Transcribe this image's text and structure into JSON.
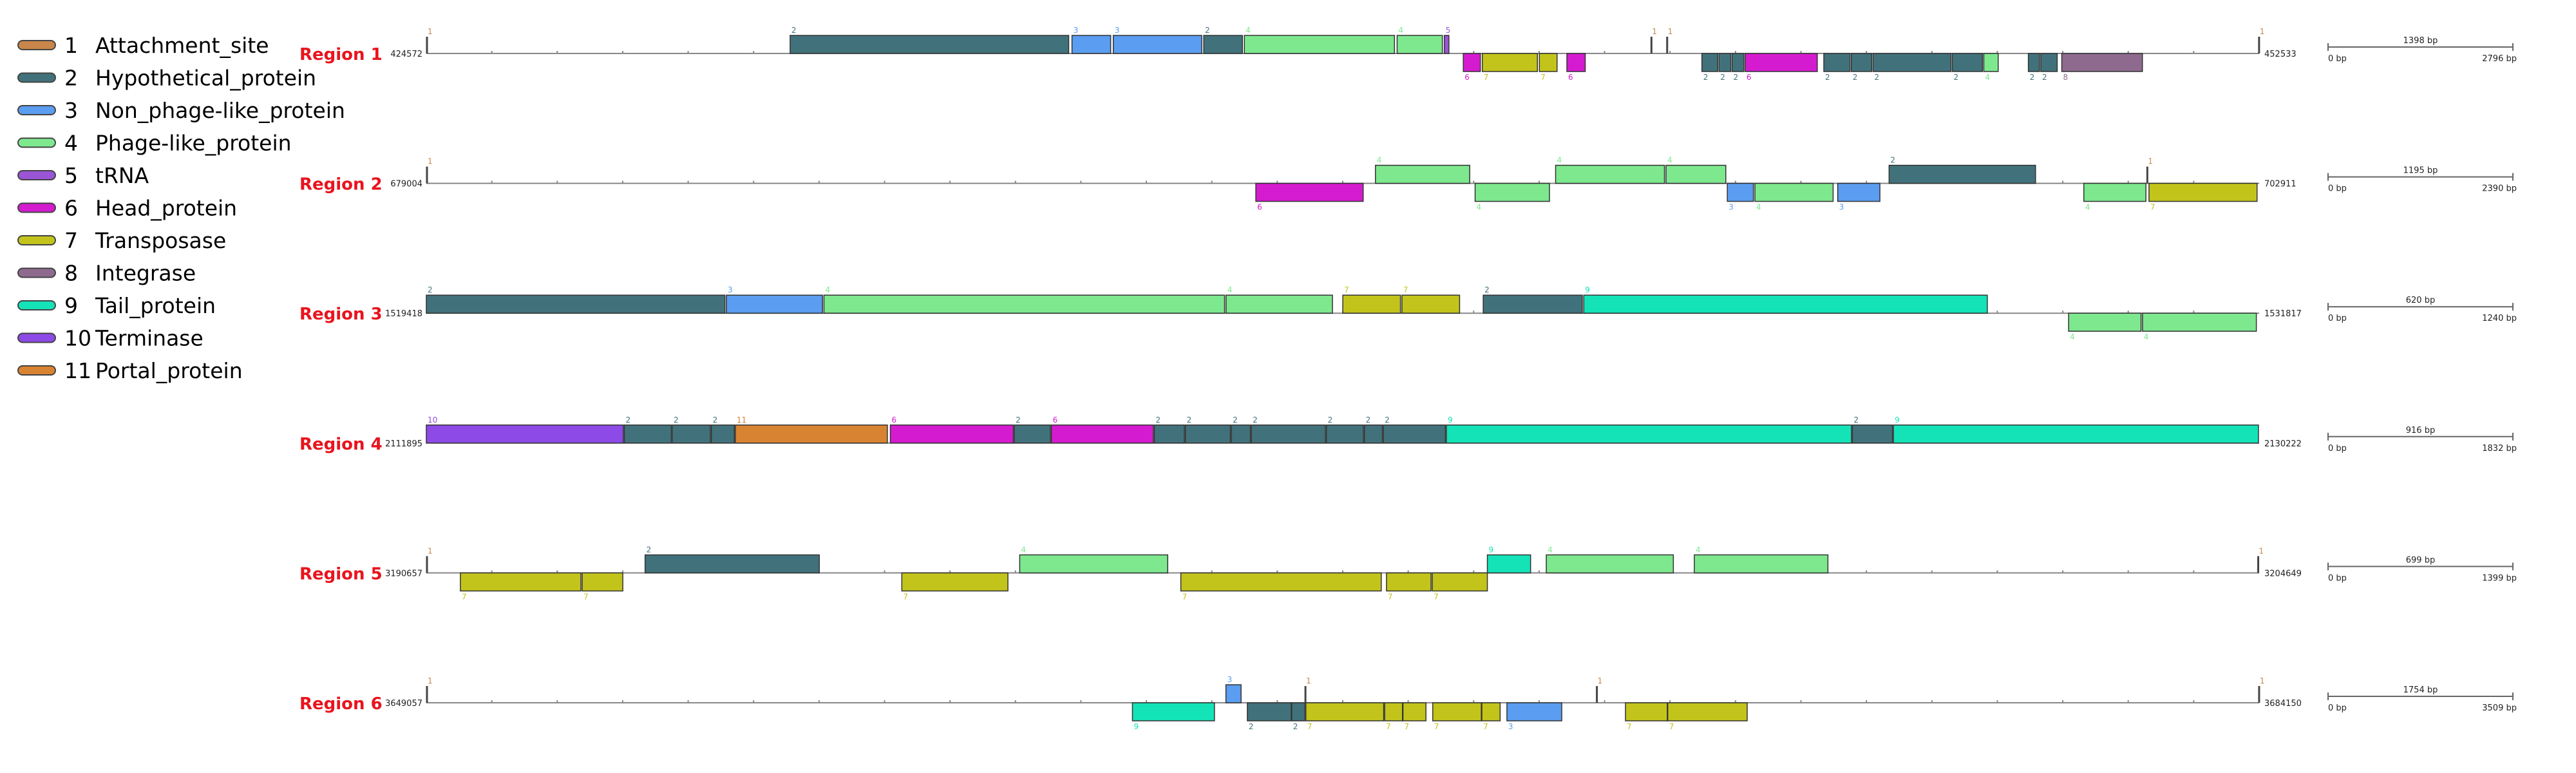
{
  "legend": [
    {
      "num": "1",
      "name": "Attachment_site",
      "color": "#c8864a"
    },
    {
      "num": "2",
      "name": "Hypothetical_protein",
      "color": "#41727b"
    },
    {
      "num": "3",
      "name": "Non_phage-like_protein",
      "color": "#5b9df0"
    },
    {
      "num": "4",
      "name": "Phage-like_protein",
      "color": "#7ee88f"
    },
    {
      "num": "5",
      "name": "tRNA",
      "color": "#9a55d6"
    },
    {
      "num": "6",
      "name": "Head_protein",
      "color": "#d51bcf"
    },
    {
      "num": "7",
      "name": "Transposase",
      "color": "#c3c41b"
    },
    {
      "num": "8",
      "name": "Integrase",
      "color": "#8e6a8f"
    },
    {
      "num": "9",
      "name": "Tail_protein",
      "color": "#14e3b8"
    },
    {
      "num": "10",
      "name": "Terminase",
      "color": "#8e4ae6"
    },
    {
      "num": "11",
      "name": "Portal_protein",
      "color": "#d88332"
    }
  ],
  "regions": [
    {
      "label": "Region 1",
      "start": "424572",
      "end": "452533",
      "scale_label": "1398 bp",
      "scale_left": "0 bp",
      "scale_right": "2796 bp",
      "bp_len": 27961,
      "genes": [
        {
          "s": 0,
          "e": 10,
          "strand": "att",
          "type": 1
        },
        {
          "s": 5550,
          "e": 9800,
          "strand": "+",
          "type": 2
        },
        {
          "s": 9850,
          "e": 10440,
          "strand": "+",
          "type": 3
        },
        {
          "s": 10480,
          "e": 11830,
          "strand": "+",
          "type": 3
        },
        {
          "s": 11860,
          "e": 12450,
          "strand": "+",
          "type": 2
        },
        {
          "s": 12480,
          "e": 14770,
          "strand": "+",
          "type": 4
        },
        {
          "s": 14810,
          "e": 15500,
          "strand": "+",
          "type": 4
        },
        {
          "s": 15530,
          "e": 15600,
          "strand": "+",
          "type": 5
        },
        {
          "s": 15820,
          "e": 16080,
          "strand": "-",
          "type": 6
        },
        {
          "s": 16110,
          "e": 16950,
          "strand": "-",
          "type": 7
        },
        {
          "s": 16980,
          "e": 17250,
          "strand": "-",
          "type": 7
        },
        {
          "s": 17400,
          "e": 17680,
          "strand": "-",
          "type": 6
        },
        {
          "s": 18680,
          "e": 18690,
          "strand": "att",
          "type": 1
        },
        {
          "s": 18920,
          "e": 18930,
          "strand": "att",
          "type": 1
        },
        {
          "s": 19460,
          "e": 19700,
          "strand": "-",
          "type": 2
        },
        {
          "s": 19720,
          "e": 19900,
          "strand": "-",
          "type": 2
        },
        {
          "s": 19920,
          "e": 20100,
          "strand": "-",
          "type": 2
        },
        {
          "s": 20120,
          "e": 21220,
          "strand": "-",
          "type": 6
        },
        {
          "s": 21320,
          "e": 21720,
          "strand": "-",
          "type": 2
        },
        {
          "s": 21740,
          "e": 22050,
          "strand": "-",
          "type": 2
        },
        {
          "s": 22070,
          "e": 23260,
          "strand": "-",
          "type": 2
        },
        {
          "s": 23280,
          "e": 23740,
          "strand": "-",
          "type": 2
        },
        {
          "s": 23760,
          "e": 23980,
          "strand": "-",
          "type": 4
        },
        {
          "s": 24440,
          "e": 24610,
          "strand": "-",
          "type": 2
        },
        {
          "s": 24630,
          "e": 24880,
          "strand": "-",
          "type": 2
        },
        {
          "s": 24950,
          "e": 26180,
          "strand": "-",
          "type": 8
        },
        {
          "s": 27950,
          "e": 27961,
          "strand": "att",
          "type": 1
        }
      ]
    },
    {
      "label": "Region 2",
      "start": "679004",
      "end": "702911",
      "scale_label": "1195 bp",
      "scale_left": "0 bp",
      "scale_right": "2390 bp",
      "bp_len": 23907,
      "genes": [
        {
          "s": 0,
          "e": 10,
          "strand": "att",
          "type": 1
        },
        {
          "s": 10820,
          "e": 12220,
          "strand": "-",
          "type": 6
        },
        {
          "s": 12380,
          "e": 13610,
          "strand": "+",
          "type": 4
        },
        {
          "s": 13680,
          "e": 14650,
          "strand": "-",
          "type": 4
        },
        {
          "s": 14730,
          "e": 16150,
          "strand": "+",
          "type": 4
        },
        {
          "s": 16170,
          "e": 16950,
          "strand": "+",
          "type": 4
        },
        {
          "s": 16970,
          "e": 17310,
          "strand": "-",
          "type": 3
        },
        {
          "s": 17330,
          "e": 18350,
          "strand": "-",
          "type": 4
        },
        {
          "s": 18410,
          "e": 18960,
          "strand": "-",
          "type": 3
        },
        {
          "s": 19080,
          "e": 20990,
          "strand": "+",
          "type": 2
        },
        {
          "s": 21620,
          "e": 22430,
          "strand": "-",
          "type": 4
        },
        {
          "s": 22470,
          "e": 23880,
          "strand": "-",
          "type": 7
        },
        {
          "s": 22440,
          "e": 22450,
          "strand": "att",
          "type": 1
        }
      ]
    },
    {
      "label": "Region 3",
      "start": "1519418",
      "end": "1531817",
      "scale_label": "620 bp",
      "scale_left": "0 bp",
      "scale_right": "1240 bp",
      "bp_len": 12399,
      "genes": [
        {
          "s": 0,
          "e": 2020,
          "strand": "+",
          "type": 2
        },
        {
          "s": 2030,
          "e": 2680,
          "strand": "+",
          "type": 3
        },
        {
          "s": 2690,
          "e": 5400,
          "strand": "+",
          "type": 4
        },
        {
          "s": 5410,
          "e": 6130,
          "strand": "+",
          "type": 4
        },
        {
          "s": 6200,
          "e": 6590,
          "strand": "+",
          "type": 7
        },
        {
          "s": 6600,
          "e": 6990,
          "strand": "+",
          "type": 7
        },
        {
          "s": 7150,
          "e": 7820,
          "strand": "+",
          "type": 2
        },
        {
          "s": 7830,
          "e": 10560,
          "strand": "+",
          "type": 9
        },
        {
          "s": 11110,
          "e": 11600,
          "strand": "-",
          "type": 4
        },
        {
          "s": 11610,
          "e": 12380,
          "strand": "-",
          "type": 4
        }
      ]
    },
    {
      "label": "Region 4",
      "start": "2111895",
      "end": "2130222",
      "scale_label": "916 bp",
      "scale_left": "0 bp",
      "scale_right": "1832 bp",
      "bp_len": 18327,
      "genes": [
        {
          "s": 0,
          "e": 1970,
          "strand": "+",
          "type": 10
        },
        {
          "s": 1980,
          "e": 2450,
          "strand": "+",
          "type": 2
        },
        {
          "s": 2460,
          "e": 2840,
          "strand": "+",
          "type": 2
        },
        {
          "s": 2850,
          "e": 3080,
          "strand": "+",
          "type": 2
        },
        {
          "s": 3090,
          "e": 4610,
          "strand": "+",
          "type": 11
        },
        {
          "s": 4640,
          "e": 5870,
          "strand": "+",
          "type": 6
        },
        {
          "s": 5880,
          "e": 6240,
          "strand": "+",
          "type": 2
        },
        {
          "s": 6250,
          "e": 7270,
          "strand": "+",
          "type": 6
        },
        {
          "s": 7280,
          "e": 7580,
          "strand": "+",
          "type": 2
        },
        {
          "s": 7590,
          "e": 8040,
          "strand": "+",
          "type": 2
        },
        {
          "s": 8050,
          "e": 8240,
          "strand": "+",
          "type": 2
        },
        {
          "s": 8250,
          "e": 8990,
          "strand": "+",
          "type": 2
        },
        {
          "s": 9000,
          "e": 9370,
          "strand": "+",
          "type": 2
        },
        {
          "s": 9380,
          "e": 9560,
          "strand": "+",
          "type": 2
        },
        {
          "s": 9570,
          "e": 10190,
          "strand": "+",
          "type": 2
        },
        {
          "s": 10200,
          "e": 14250,
          "strand": "+",
          "type": 9
        },
        {
          "s": 14260,
          "e": 14660,
          "strand": "+",
          "type": 2
        },
        {
          "s": 14670,
          "e": 18320,
          "strand": "+",
          "type": 9
        }
      ]
    },
    {
      "label": "Region 5",
      "start": "3190657",
      "end": "3204649",
      "scale_label": "699 bp",
      "scale_left": "0 bp",
      "scale_right": "1399 bp",
      "bp_len": 13992,
      "genes": [
        {
          "s": 0,
          "e": 10,
          "strand": "att",
          "type": 1
        },
        {
          "s": 260,
          "e": 1180,
          "strand": "-",
          "type": 7
        },
        {
          "s": 1190,
          "e": 1500,
          "strand": "-",
          "type": 7
        },
        {
          "s": 1670,
          "e": 3000,
          "strand": "+",
          "type": 2
        },
        {
          "s": 3630,
          "e": 4440,
          "strand": "-",
          "type": 7
        },
        {
          "s": 4530,
          "e": 5660,
          "strand": "+",
          "type": 4
        },
        {
          "s": 5760,
          "e": 7290,
          "strand": "-",
          "type": 7
        },
        {
          "s": 7330,
          "e": 7670,
          "strand": "-",
          "type": 7
        },
        {
          "s": 7680,
          "e": 8100,
          "strand": "-",
          "type": 7
        },
        {
          "s": 8100,
          "e": 8430,
          "strand": "+",
          "type": 9
        },
        {
          "s": 8550,
          "e": 9520,
          "strand": "+",
          "type": 4
        },
        {
          "s": 9680,
          "e": 10700,
          "strand": "+",
          "type": 4
        },
        {
          "s": 13980,
          "e": 13992,
          "strand": "att",
          "type": 1
        }
      ]
    },
    {
      "label": "Region 6",
      "start": "3649057",
      "end": "3684150",
      "scale_label": "1754 bp",
      "scale_left": "0 bp",
      "scale_right": "3509 bp",
      "bp_len": 35093,
      "genes": [
        {
          "s": 0,
          "e": 10,
          "strand": "att",
          "type": 1
        },
        {
          "s": 13520,
          "e": 15090,
          "strand": "-",
          "type": 9
        },
        {
          "s": 15310,
          "e": 15600,
          "strand": "+",
          "type": 3
        },
        {
          "s": 15720,
          "e": 16560,
          "strand": "-",
          "type": 2
        },
        {
          "s": 16570,
          "e": 16820,
          "strand": "-",
          "type": 2
        },
        {
          "s": 16820,
          "e": 16830,
          "strand": "att",
          "type": 1
        },
        {
          "s": 16840,
          "e": 18330,
          "strand": "-",
          "type": 7
        },
        {
          "s": 18350,
          "e": 18690,
          "strand": "-",
          "type": 7
        },
        {
          "s": 18700,
          "e": 19140,
          "strand": "-",
          "type": 7
        },
        {
          "s": 19270,
          "e": 20200,
          "strand": "-",
          "type": 7
        },
        {
          "s": 20210,
          "e": 20560,
          "strand": "-",
          "type": 7
        },
        {
          "s": 20690,
          "e": 21740,
          "strand": "-",
          "type": 3
        },
        {
          "s": 22400,
          "e": 22410,
          "strand": "att",
          "type": 1
        },
        {
          "s": 22960,
          "e": 23760,
          "strand": "-",
          "type": 7
        },
        {
          "s": 23770,
          "e": 25290,
          "strand": "-",
          "type": 7
        },
        {
          "s": 35080,
          "e": 35093,
          "strand": "att",
          "type": 1
        }
      ]
    }
  ]
}
